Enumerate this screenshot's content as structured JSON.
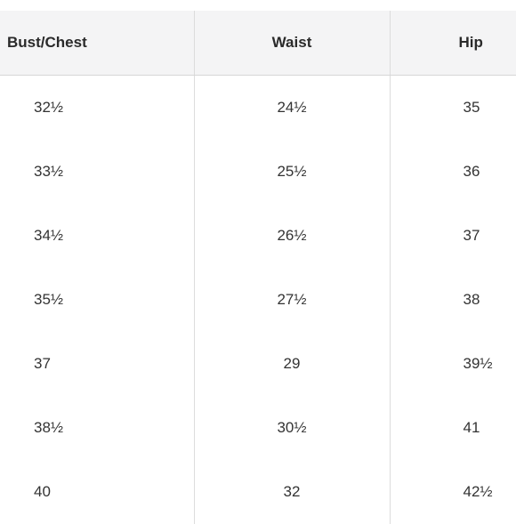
{
  "table": {
    "headers": [
      "Bust/Chest",
      "Waist",
      "Hip"
    ],
    "rows": [
      [
        "32½",
        "24½",
        "35"
      ],
      [
        "33½",
        "25½",
        "36"
      ],
      [
        "34½",
        "26½",
        "37"
      ],
      [
        "35½",
        "27½",
        "38"
      ],
      [
        "37",
        "29",
        "39½"
      ],
      [
        "38½",
        "30½",
        "41"
      ],
      [
        "40",
        "32",
        "42½"
      ]
    ]
  }
}
